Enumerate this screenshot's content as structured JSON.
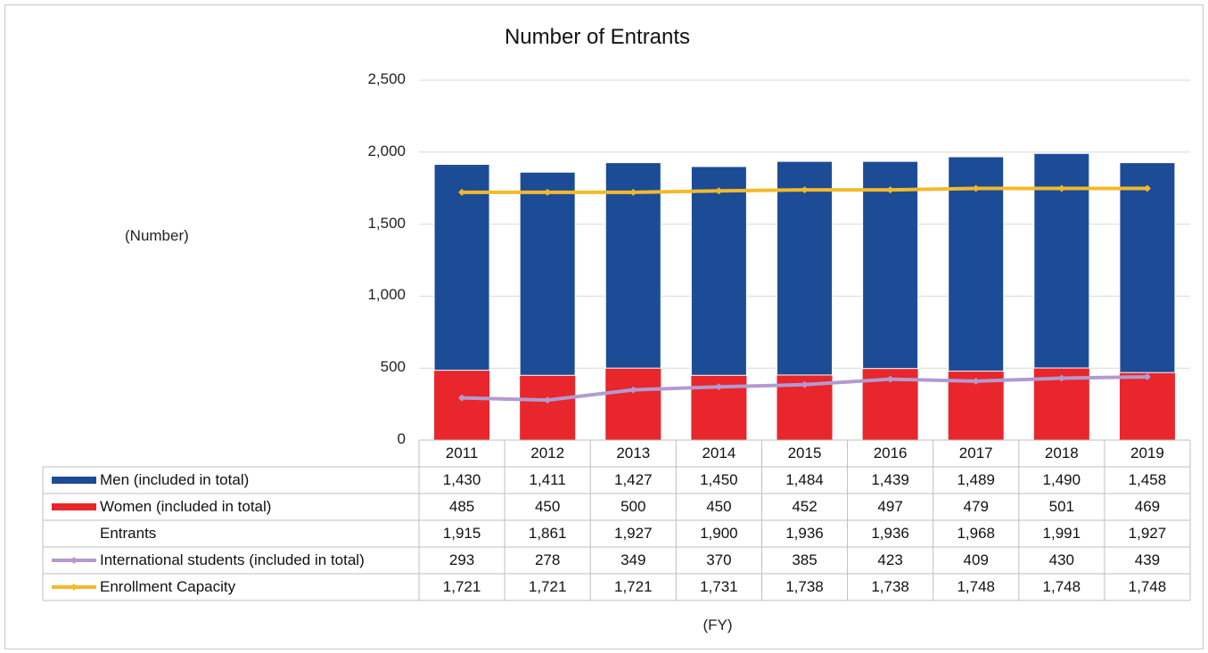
{
  "chart_data": {
    "type": "bar",
    "title": "Number of Entrants",
    "ylabel": "(Number)",
    "xlabel": "(FY)",
    "ylim": [
      0,
      2500
    ],
    "yticks": [
      "0",
      "500",
      "1,000",
      "1,500",
      "2,000",
      "2,500"
    ],
    "ytick_values": [
      0,
      500,
      1000,
      1500,
      2000,
      2500
    ],
    "categories": [
      "2011",
      "2012",
      "2013",
      "2014",
      "2015",
      "2016",
      "2017",
      "2018",
      "2019"
    ],
    "series": [
      {
        "name": "Men (included in total)",
        "kind": "stacked-bar",
        "color": "#1c4c96",
        "values": [
          1430,
          1411,
          1427,
          1450,
          1484,
          1439,
          1489,
          1490,
          1458
        ],
        "labels": [
          "1,430",
          "1,411",
          "1,427",
          "1,450",
          "1,484",
          "1,439",
          "1,489",
          "1,490",
          "1,458"
        ]
      },
      {
        "name": "Women (included in total)",
        "kind": "stacked-bar",
        "color": "#e8262b",
        "values": [
          485,
          450,
          500,
          450,
          452,
          497,
          479,
          501,
          469
        ],
        "labels": [
          "485",
          "450",
          "500",
          "450",
          "452",
          "497",
          "479",
          "501",
          "469"
        ]
      },
      {
        "name": "Entrants",
        "kind": "total",
        "values": [
          1915,
          1861,
          1927,
          1900,
          1936,
          1936,
          1968,
          1991,
          1927
        ],
        "labels": [
          "1,915",
          "1,861",
          "1,927",
          "1,900",
          "1,936",
          "1,936",
          "1,968",
          "1,991",
          "1,927"
        ]
      },
      {
        "name": "International students (included in total)",
        "kind": "line",
        "color": "#b39ad0",
        "values": [
          293,
          278,
          349,
          370,
          385,
          423,
          409,
          430,
          439
        ],
        "labels": [
          "293",
          "278",
          "349",
          "370",
          "385",
          "423",
          "409",
          "430",
          "439"
        ]
      },
      {
        "name": "Enrollment Capacity",
        "kind": "line",
        "color": "#f4b92a",
        "values": [
          1721,
          1721,
          1721,
          1731,
          1738,
          1738,
          1748,
          1748,
          1748
        ],
        "labels": [
          "1,721",
          "1,721",
          "1,721",
          "1,731",
          "1,738",
          "1,738",
          "1,748",
          "1,748",
          "1,748"
        ]
      }
    ],
    "grid": true,
    "legend": "data-table"
  }
}
